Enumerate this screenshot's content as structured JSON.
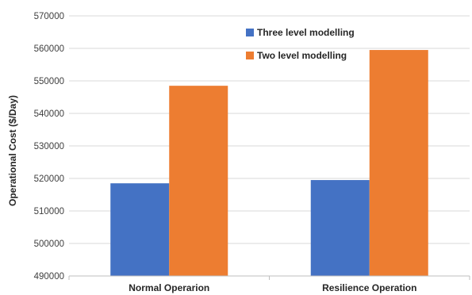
{
  "chart_data": {
    "type": "bar",
    "title": "",
    "xlabel": "",
    "ylabel": "Operational Cost ($/Day)",
    "categories": [
      "Normal Operarion",
      "Resilience Operation"
    ],
    "series": [
      {
        "name": "Three level modelling",
        "color": "#4472C4",
        "values": [
          518500,
          519500
        ]
      },
      {
        "name": "Two level modelling",
        "color": "#ED7D31",
        "values": [
          548500,
          559500
        ]
      }
    ],
    "ylim": [
      490000,
      570000
    ],
    "yticks": [
      490000,
      500000,
      510000,
      520000,
      530000,
      540000,
      550000,
      560000,
      570000
    ],
    "grid": true,
    "legend": "top-center"
  }
}
